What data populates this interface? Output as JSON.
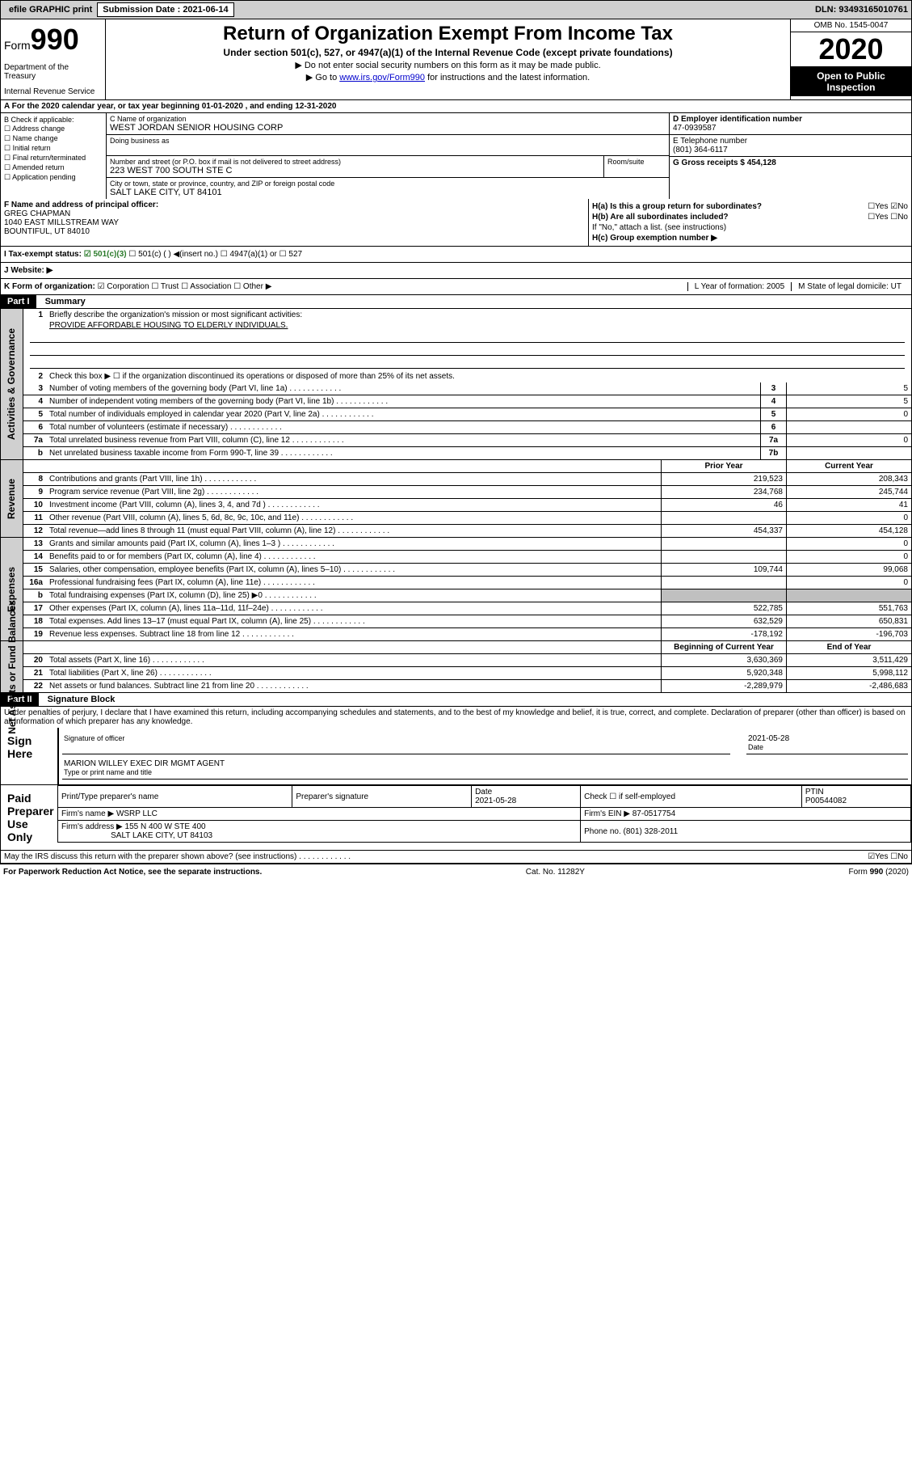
{
  "topbar": {
    "efile": "efile GRAPHIC print",
    "submission_label": "Submission Date : 2021-06-14",
    "dln": "DLN: 93493165010761"
  },
  "header": {
    "form_label": "Form",
    "form_num": "990",
    "agency1": "Department of the Treasury",
    "agency2": "Internal Revenue Service",
    "title": "Return of Organization Exempt From Income Tax",
    "sub": "Under section 501(c), 527, or 4947(a)(1) of the Internal Revenue Code (except private foundations)",
    "note1": "▶ Do not enter social security numbers on this form as it may be made public.",
    "note2_pre": "▶ Go to ",
    "note2_link": "www.irs.gov/Form990",
    "note2_post": " for instructions and the latest information.",
    "omb": "OMB No. 1545-0047",
    "year": "2020",
    "inspection": "Open to Public Inspection"
  },
  "row_a": "A For the 2020 calendar year, or tax year beginning 01-01-2020   , and ending 12-31-2020",
  "section_b": {
    "check_label": "B Check if applicable:",
    "checks": [
      "☐ Address change",
      "☐ Name change",
      "☐ Initial return",
      "☐ Final return/terminated",
      "☐ Amended return",
      "☐ Application pending"
    ],
    "c_label": "C Name of organization",
    "c_val": "WEST JORDAN SENIOR HOUSING CORP",
    "dba_label": "Doing business as",
    "addr_label": "Number and street (or P.O. box if mail is not delivered to street address)",
    "addr_val": "223 WEST 700 SOUTH STE C",
    "room_label": "Room/suite",
    "city_label": "City or town, state or province, country, and ZIP or foreign postal code",
    "city_val": "SALT LAKE CITY, UT  84101",
    "d_label": "D Employer identification number",
    "d_val": "47-0939587",
    "e_label": "E Telephone number",
    "e_val": "(801) 364-6117",
    "g_label": "G Gross receipts $ 454,128"
  },
  "section_fh": {
    "f_label": "F  Name and address of principal officer:",
    "f_name": "GREG CHAPMAN",
    "f_addr1": "1040 EAST MILLSTREAM WAY",
    "f_addr2": "BOUNTIFUL, UT  84010",
    "ha": "H(a)  Is this a group return for subordinates?",
    "ha_ans": "☐Yes ☑No",
    "hb": "H(b)  Are all subordinates included?",
    "hb_ans": "☐Yes ☐No",
    "hb_note": "If \"No,\" attach a list. (see instructions)",
    "hc": "H(c)  Group exemption number ▶"
  },
  "row_i": {
    "label": "I  Tax-exempt status:",
    "opt1": "☑ 501(c)(3)",
    "opt2": "☐  501(c) (  ) ◀(insert no.)",
    "opt3": "☐  4947(a)(1) or",
    "opt4": "☐  527"
  },
  "row_j": "J  Website: ▶",
  "row_k": {
    "label": "K Form of organization:",
    "opts": "☑ Corporation  ☐ Trust  ☐ Association  ☐ Other ▶",
    "l": "L Year of formation: 2005",
    "m": "M State of legal domicile: UT"
  },
  "part1": {
    "header": "Part I",
    "title": "Summary",
    "side1": "Activities & Governance",
    "line1": "Briefly describe the organization's mission or most significant activities:",
    "mission": "PROVIDE AFFORDABLE HOUSING TO ELDERLY INDIVIDUALS.",
    "line2": "Check this box ▶ ☐  if the organization discontinued its operations or disposed of more than 25% of its net assets.",
    "lines_gov": [
      {
        "n": "3",
        "d": "Number of voting members of the governing body (Part VI, line 1a)",
        "r": "3",
        "v": "5"
      },
      {
        "n": "4",
        "d": "Number of independent voting members of the governing body (Part VI, line 1b)",
        "r": "4",
        "v": "5"
      },
      {
        "n": "5",
        "d": "Total number of individuals employed in calendar year 2020 (Part V, line 2a)",
        "r": "5",
        "v": "0"
      },
      {
        "n": "6",
        "d": "Total number of volunteers (estimate if necessary)",
        "r": "6",
        "v": ""
      },
      {
        "n": "7a",
        "d": "Total unrelated business revenue from Part VIII, column (C), line 12",
        "r": "7a",
        "v": "0"
      },
      {
        "n": "b",
        "d": "Net unrelated business taxable income from Form 990-T, line 39",
        "r": "7b",
        "v": ""
      }
    ],
    "side2": "Revenue",
    "col_prior": "Prior Year",
    "col_current": "Current Year",
    "lines_rev": [
      {
        "n": "8",
        "d": "Contributions and grants (Part VIII, line 1h)",
        "p": "219,523",
        "c": "208,343"
      },
      {
        "n": "9",
        "d": "Program service revenue (Part VIII, line 2g)",
        "p": "234,768",
        "c": "245,744"
      },
      {
        "n": "10",
        "d": "Investment income (Part VIII, column (A), lines 3, 4, and 7d )",
        "p": "46",
        "c": "41"
      },
      {
        "n": "11",
        "d": "Other revenue (Part VIII, column (A), lines 5, 6d, 8c, 9c, 10c, and 11e)",
        "p": "",
        "c": "0"
      },
      {
        "n": "12",
        "d": "Total revenue—add lines 8 through 11 (must equal Part VIII, column (A), line 12)",
        "p": "454,337",
        "c": "454,128"
      }
    ],
    "side3": "Expenses",
    "lines_exp": [
      {
        "n": "13",
        "d": "Grants and similar amounts paid (Part IX, column (A), lines 1–3 )",
        "p": "",
        "c": "0"
      },
      {
        "n": "14",
        "d": "Benefits paid to or for members (Part IX, column (A), line 4)",
        "p": "",
        "c": "0"
      },
      {
        "n": "15",
        "d": "Salaries, other compensation, employee benefits (Part IX, column (A), lines 5–10)",
        "p": "109,744",
        "c": "99,068"
      },
      {
        "n": "16a",
        "d": "Professional fundraising fees (Part IX, column (A), line 11e)",
        "p": "",
        "c": "0"
      },
      {
        "n": "b",
        "d": "Total fundraising expenses (Part IX, column (D), line 25) ▶0",
        "p": "shaded",
        "c": "shaded"
      },
      {
        "n": "17",
        "d": "Other expenses (Part IX, column (A), lines 11a–11d, 11f–24e)",
        "p": "522,785",
        "c": "551,763"
      },
      {
        "n": "18",
        "d": "Total expenses. Add lines 13–17 (must equal Part IX, column (A), line 25)",
        "p": "632,529",
        "c": "650,831"
      },
      {
        "n": "19",
        "d": "Revenue less expenses. Subtract line 18 from line 12",
        "p": "-178,192",
        "c": "-196,703"
      }
    ],
    "side4": "Net Assets or Fund Balances",
    "col_begin": "Beginning of Current Year",
    "col_end": "End of Year",
    "lines_net": [
      {
        "n": "20",
        "d": "Total assets (Part X, line 16)",
        "p": "3,630,369",
        "c": "3,511,429"
      },
      {
        "n": "21",
        "d": "Total liabilities (Part X, line 26)",
        "p": "5,920,348",
        "c": "5,998,112"
      },
      {
        "n": "22",
        "d": "Net assets or fund balances. Subtract line 21 from line 20",
        "p": "-2,289,979",
        "c": "-2,486,683"
      }
    ]
  },
  "part2": {
    "header": "Part II",
    "title": "Signature Block",
    "perjury": "Under penalties of perjury, I declare that I have examined this return, including accompanying schedules and statements, and to the best of my knowledge and belief, it is true, correct, and complete. Declaration of preparer (other than officer) is based on all information of which preparer has any knowledge.",
    "sign_here": "Sign Here",
    "sig_officer": "Signature of officer",
    "sig_date": "2021-05-28",
    "sig_date_label": "Date",
    "officer_name": "MARION WILLEY  EXEC DIR MGMT AGENT",
    "type_label": "Type or print name and title",
    "paid_label": "Paid Preparer Use Only",
    "prep_name_label": "Print/Type preparer's name",
    "prep_sig_label": "Preparer's signature",
    "prep_date_label": "Date",
    "prep_date": "2021-05-28",
    "prep_check": "Check ☐  if self-employed",
    "ptin_label": "PTIN",
    "ptin": "P00544082",
    "firm_name_label": "Firm's name    ▶",
    "firm_name": "WSRP LLC",
    "firm_ein_label": "Firm's EIN ▶",
    "firm_ein": "87-0517754",
    "firm_addr_label": "Firm's address ▶",
    "firm_addr1": "155 N 400 W STE 400",
    "firm_addr2": "SALT LAKE CITY, UT  84103",
    "phone_label": "Phone no.",
    "phone": "(801) 328-2011",
    "discuss": "May the IRS discuss this return with the preparer shown above? (see instructions)",
    "discuss_ans": "☑Yes  ☐No"
  },
  "footer": {
    "left": "For Paperwork Reduction Act Notice, see the separate instructions.",
    "mid": "Cat. No. 11282Y",
    "right": "Form 990 (2020)"
  }
}
